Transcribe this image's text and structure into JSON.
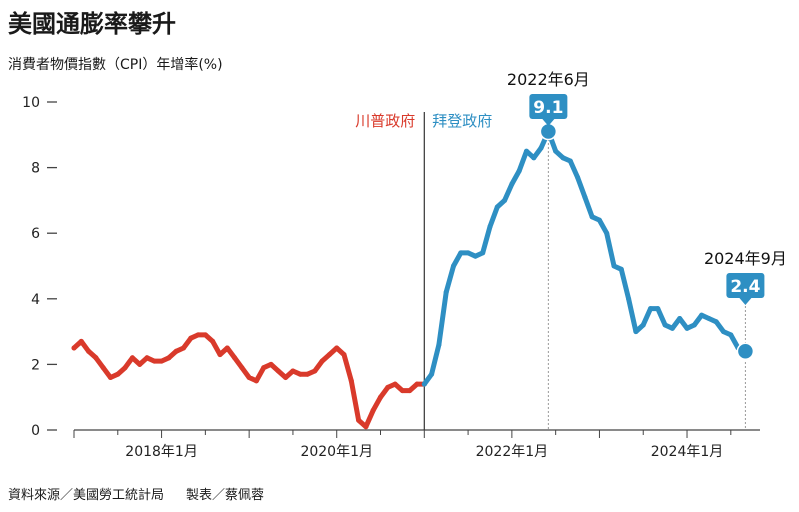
{
  "title": "美國通膨率攀升",
  "subtitle": "消費者物價指數（CPI）年增率(%)",
  "source": "資料來源／美國勞工統計局",
  "credit": "製表／蔡佩蓉",
  "colors": {
    "trump": "#d93a2b",
    "biden": "#2e8fc3",
    "axis": "#444444",
    "guide": "#999999"
  },
  "chart_data": {
    "type": "line",
    "ylim": [
      0,
      10
    ],
    "y_ticks": [
      {
        "value": 0,
        "label": "0"
      },
      {
        "value": 2,
        "label": "2"
      },
      {
        "value": 4,
        "label": "4"
      },
      {
        "value": 6,
        "label": "6"
      },
      {
        "value": 8,
        "label": "8"
      },
      {
        "value": 10,
        "label": "10"
      }
    ],
    "xlim": [
      "2017-01",
      "2024-11"
    ],
    "x_ticks": [
      {
        "x": "2018-01",
        "label": "2018年1月"
      },
      {
        "x": "2020-01",
        "label": "2020年1月"
      },
      {
        "x": "2022-01",
        "label": "2022年1月"
      },
      {
        "x": "2024-01",
        "label": "2024年1月"
      }
    ],
    "period_divider": "2021-01",
    "periods": [
      {
        "label": "川普政府",
        "color": "#d93a2b"
      },
      {
        "label": "拜登政府",
        "color": "#2e8fc3"
      }
    ],
    "annotations": [
      {
        "x": "2022-06",
        "date_label": "2022年6月",
        "value_label": "9.1"
      },
      {
        "x": "2024-09",
        "date_label": "2024年9月",
        "value_label": "2.4"
      }
    ],
    "series": [
      {
        "start": "2017-01",
        "color": "#d93a2b",
        "values": [
          2.5,
          2.7,
          2.4,
          2.2,
          1.9,
          1.6,
          1.7,
          1.9,
          2.2,
          2.0,
          2.2,
          2.1,
          2.1,
          2.2,
          2.4,
          2.5,
          2.8,
          2.9,
          2.9,
          2.7,
          2.3,
          2.5,
          2.2,
          1.9,
          1.6,
          1.5,
          1.9,
          2.0,
          1.8,
          1.6,
          1.8,
          1.7,
          1.7,
          1.8,
          2.1,
          2.3,
          2.5,
          2.3,
          1.5,
          0.3,
          0.1,
          0.6,
          1.0,
          1.3,
          1.4,
          1.2,
          1.2,
          1.4,
          1.4
        ]
      },
      {
        "start": "2021-01",
        "color": "#2e8fc3",
        "values": [
          1.4,
          1.7,
          2.6,
          4.2,
          5.0,
          5.4,
          5.4,
          5.3,
          5.4,
          6.2,
          6.8,
          7.0,
          7.5,
          7.9,
          8.5,
          8.3,
          8.6,
          9.1,
          8.5,
          8.3,
          8.2,
          7.7,
          7.1,
          6.5,
          6.4,
          6.0,
          5.0,
          4.9,
          4.0,
          3.0,
          3.2,
          3.7,
          3.7,
          3.2,
          3.1,
          3.4,
          3.1,
          3.2,
          3.5,
          3.4,
          3.3,
          3.0,
          2.9,
          2.5,
          2.4
        ]
      }
    ]
  }
}
